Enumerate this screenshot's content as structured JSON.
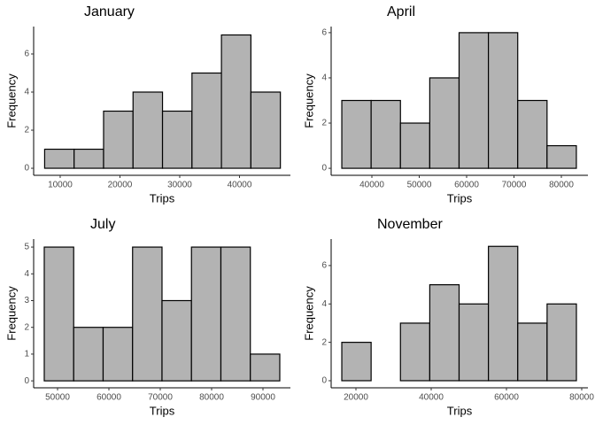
{
  "chart_data": [
    {
      "type": "histogram",
      "title": "January",
      "x_label": "Trips",
      "y_label": "Frequency",
      "bins": [
        7400,
        12330,
        17260,
        22190,
        27120,
        32050,
        36980,
        41910,
        46840
      ],
      "values": [
        1,
        1,
        3,
        4,
        3,
        5,
        7,
        4
      ],
      "color": "#b3b3b3",
      "xlim": [
        5560,
        48520
      ],
      "xticks": [
        10000,
        20000,
        30000,
        40000
      ],
      "ylim": [
        -0.37,
        7.44
      ],
      "yticks": [
        0,
        2,
        4,
        6
      ]
    },
    {
      "type": "histogram",
      "title": "April",
      "x_label": "Trips",
      "y_label": "Frequency",
      "bins": [
        33650,
        39840,
        46030,
        52220,
        58410,
        64600,
        70790,
        76980,
        83170
      ],
      "values": [
        3,
        3,
        2,
        4,
        6,
        6,
        3,
        1
      ],
      "color": "#b3b3b3",
      "xlim": [
        31400,
        85610
      ],
      "xticks": [
        40000,
        50000,
        60000,
        70000,
        80000
      ],
      "ylim": [
        -0.31,
        6.27
      ],
      "yticks": [
        0,
        2,
        4,
        6
      ]
    },
    {
      "type": "histogram",
      "title": "July",
      "x_label": "Trips",
      "y_label": "Frequency",
      "bins": [
        47410,
        53143,
        58876,
        64609,
        70342,
        76075,
        81808,
        87541,
        93274
      ],
      "values": [
        5,
        2,
        2,
        5,
        3,
        5,
        5,
        1
      ],
      "color": "#b3b3b3",
      "xlim": [
        45345,
        95345
      ],
      "xticks": [
        50000,
        60000,
        70000,
        80000,
        90000
      ],
      "ylim": [
        -0.26,
        5.3
      ],
      "yticks": [
        0,
        1,
        2,
        3,
        4,
        5
      ]
    },
    {
      "type": "histogram",
      "title": "November",
      "x_label": "Trips",
      "y_label": "Frequency",
      "bins": [
        16240,
        24034,
        31828,
        39622,
        47416,
        55210,
        63004,
        70798,
        78592
      ],
      "values": [
        2,
        0,
        3,
        5,
        4,
        7,
        3,
        4
      ],
      "color": "#b3b3b3",
      "xlim": [
        13410,
        81650
      ],
      "xticks": [
        20000,
        40000,
        60000,
        80000
      ],
      "ylim": [
        -0.37,
        7.38
      ],
      "yticks": [
        0,
        2,
        4,
        6
      ]
    }
  ]
}
